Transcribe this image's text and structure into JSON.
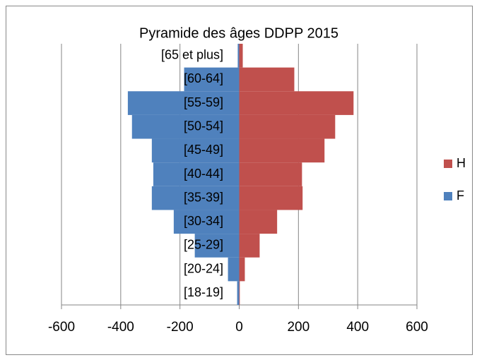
{
  "chart_data": {
    "type": "bar",
    "orientation": "horizontal",
    "stacked": false,
    "title": "Pyramide des âges DDPP 2015",
    "categories": [
      "[18-19]",
      "[20-24]",
      "[25-29]",
      "[30-34]",
      "[35-39]",
      "[40-44]",
      "[45-49]",
      "[50-54]",
      "[55-59]",
      "[60-64]",
      "[65 et plus]"
    ],
    "series": [
      {
        "name": "H",
        "color": "#c0504d",
        "values": [
          2,
          19,
          69,
          128,
          214,
          212,
          288,
          324,
          386,
          186,
          12
        ]
      },
      {
        "name": "F",
        "color": "#4f81bd",
        "values": [
          -7,
          -38,
          -150,
          -221,
          -295,
          -290,
          -295,
          -362,
          -376,
          -186,
          -5
        ]
      }
    ],
    "xlim": [
      -600,
      600
    ],
    "xticks": [
      -600,
      -400,
      -200,
      0,
      200,
      400,
      600
    ],
    "grid": true,
    "legend": "right"
  }
}
